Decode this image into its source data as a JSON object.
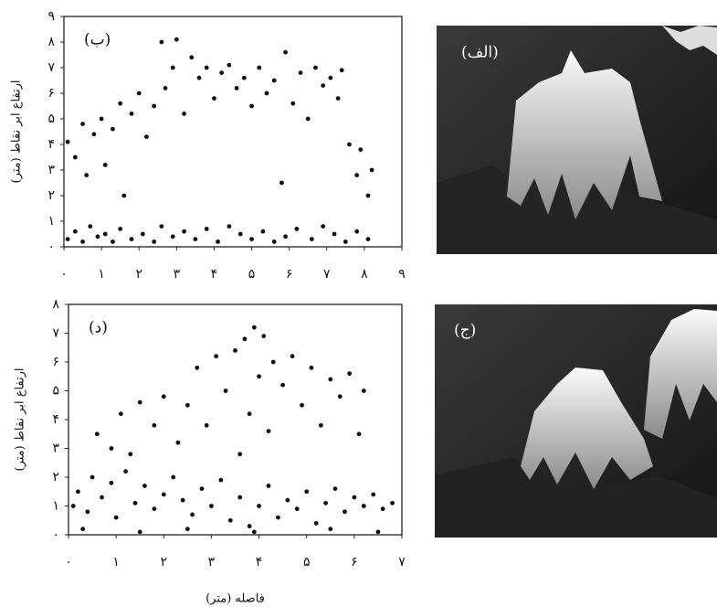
{
  "chart_data": [
    {
      "type": "scatter",
      "annotation": "(ب)",
      "y_label": "ارتفاع ابر نقاط (متر)",
      "color": "#111111",
      "x": [
        0.1,
        0.3,
        0.5,
        0.7,
        0.9,
        1.1,
        1.3,
        1.5,
        1.8,
        2.1,
        2.4,
        2.6,
        2.9,
        3.2,
        3.5,
        3.8,
        4.1,
        4.4,
        4.7,
        5.0,
        5.3,
        5.6,
        5.9,
        6.2,
        6.6,
        6.9,
        7.2,
        7.5,
        7.8,
        8.1,
        0.1,
        0.3,
        0.5,
        0.6,
        0.8,
        1.0,
        1.1,
        1.3,
        1.5,
        1.6,
        1.8,
        2.0,
        2.2,
        2.4,
        2.6,
        2.7,
        2.9,
        3.0,
        3.2,
        3.4,
        3.6,
        3.8,
        4.0,
        4.2,
        4.4,
        4.6,
        4.8,
        5.0,
        5.2,
        5.4,
        5.6,
        5.8,
        5.9,
        6.1,
        6.3,
        6.5,
        6.7,
        6.9,
        7.1,
        7.3,
        7.4,
        7.6,
        7.8,
        7.9,
        8.1,
        8.2
      ],
      "values": [
        0.3,
        0.6,
        0.2,
        0.8,
        0.4,
        0.5,
        0.2,
        0.7,
        0.3,
        0.5,
        0.2,
        0.8,
        0.4,
        0.6,
        0.3,
        0.7,
        0.2,
        0.8,
        0.5,
        0.3,
        0.6,
        0.2,
        0.4,
        0.7,
        0.3,
        0.8,
        0.5,
        0.2,
        0.6,
        0.3,
        4.1,
        3.5,
        4.8,
        2.8,
        4.4,
        5.0,
        3.2,
        4.6,
        5.6,
        2.0,
        5.2,
        6.0,
        4.3,
        5.5,
        8.0,
        6.2,
        7.0,
        8.1,
        5.2,
        7.4,
        6.6,
        7.0,
        5.8,
        6.8,
        7.1,
        6.2,
        6.6,
        5.5,
        7.0,
        6.0,
        6.5,
        2.5,
        7.6,
        5.6,
        6.8,
        5.0,
        7.0,
        6.3,
        6.6,
        5.8,
        6.9,
        4.0,
        2.8,
        3.8,
        2.0,
        3.0
      ],
      "xlim": [
        0,
        9
      ],
      "ylim": [
        0,
        9
      ],
      "xticks": [
        {
          "value": 0,
          "label": "۰"
        },
        {
          "value": 1,
          "label": "۱"
        },
        {
          "value": 2,
          "label": "۲"
        },
        {
          "value": 3,
          "label": "۳"
        },
        {
          "value": 4,
          "label": "۴"
        },
        {
          "value": 5,
          "label": "۵"
        },
        {
          "value": 6,
          "label": "۶"
        },
        {
          "value": 7,
          "label": "۷"
        },
        {
          "value": 8,
          "label": "۸"
        },
        {
          "value": 9,
          "label": "۹"
        }
      ],
      "yticks": [
        {
          "value": 0,
          "label": "۰"
        },
        {
          "value": 1,
          "label": "۱"
        },
        {
          "value": 2,
          "label": "۲"
        },
        {
          "value": 3,
          "label": "۳"
        },
        {
          "value": 4,
          "label": "۴"
        },
        {
          "value": 5,
          "label": "۵"
        },
        {
          "value": 6,
          "label": "۶"
        },
        {
          "value": 7,
          "label": "۷"
        },
        {
          "value": 8,
          "label": "۸"
        },
        {
          "value": 9,
          "label": "۹"
        }
      ]
    },
    {
      "type": "scatter",
      "annotation": "(د)",
      "y_label": "ارتفاع ابر نقاط (متر)",
      "x_label": "فاصله (متر)",
      "color": "#111111",
      "x": [
        0.1,
        0.2,
        0.4,
        0.5,
        0.7,
        0.9,
        1.0,
        1.2,
        1.4,
        1.6,
        1.8,
        2.0,
        2.2,
        2.4,
        2.6,
        2.8,
        3.0,
        3.2,
        3.4,
        3.6,
        3.8,
        4.0,
        4.2,
        4.4,
        4.6,
        4.8,
        5.0,
        5.2,
        5.4,
        5.6,
        5.8,
        6.0,
        6.2,
        6.4,
        6.6,
        6.8,
        0.3,
        1.5,
        2.5,
        3.9,
        5.5,
        6.5,
        0.6,
        0.9,
        1.1,
        1.3,
        1.5,
        1.8,
        2.0,
        2.3,
        2.5,
        2.7,
        2.9,
        3.1,
        3.3,
        3.5,
        3.6,
        3.7,
        3.8,
        3.9,
        4.0,
        4.1,
        4.2,
        4.3,
        4.5,
        4.7,
        4.9,
        5.1,
        5.3,
        5.5,
        5.7,
        5.9,
        6.1,
        6.2
      ],
      "values": [
        1.0,
        1.5,
        0.8,
        2.0,
        1.3,
        1.8,
        0.6,
        2.2,
        1.1,
        1.7,
        0.9,
        1.4,
        2.0,
        1.2,
        0.7,
        1.6,
        1.0,
        1.9,
        0.5,
        1.3,
        0.3,
        1.0,
        1.7,
        0.6,
        1.2,
        0.9,
        1.5,
        0.4,
        1.1,
        1.6,
        0.8,
        1.3,
        1.0,
        1.4,
        0.9,
        1.1,
        0.2,
        0.1,
        0.2,
        0.1,
        0.2,
        0.1,
        3.5,
        3.0,
        4.2,
        2.8,
        4.6,
        3.8,
        4.8,
        3.2,
        4.5,
        5.8,
        3.8,
        6.2,
        5.0,
        6.4,
        2.8,
        6.8,
        4.2,
        7.2,
        5.5,
        6.9,
        3.6,
        6.0,
        5.2,
        6.2,
        4.5,
        5.8,
        3.8,
        5.4,
        4.8,
        5.6,
        3.5,
        5.0
      ],
      "xlim": [
        0,
        7
      ],
      "ylim": [
        0,
        8
      ],
      "xticks": [
        {
          "value": 0,
          "label": "۰"
        },
        {
          "value": 1,
          "label": "۱"
        },
        {
          "value": 2,
          "label": "۲"
        },
        {
          "value": 3,
          "label": "۳"
        },
        {
          "value": 4,
          "label": "۴"
        },
        {
          "value": 5,
          "label": "۵"
        },
        {
          "value": 6,
          "label": "۶"
        },
        {
          "value": 7,
          "label": "۷"
        }
      ],
      "yticks": [
        {
          "value": 0,
          "label": "۰"
        },
        {
          "value": 1,
          "label": "۱"
        },
        {
          "value": 2,
          "label": "۲"
        },
        {
          "value": 3,
          "label": "۳"
        },
        {
          "value": 4,
          "label": "۴"
        },
        {
          "value": 5,
          "label": "۵"
        },
        {
          "value": 6,
          "label": "۶"
        },
        {
          "value": 7,
          "label": "۷"
        },
        {
          "value": 8,
          "label": "۸"
        }
      ]
    }
  ],
  "panels": [
    {
      "label": "(الف)"
    },
    {
      "label": "(ج)"
    }
  ]
}
